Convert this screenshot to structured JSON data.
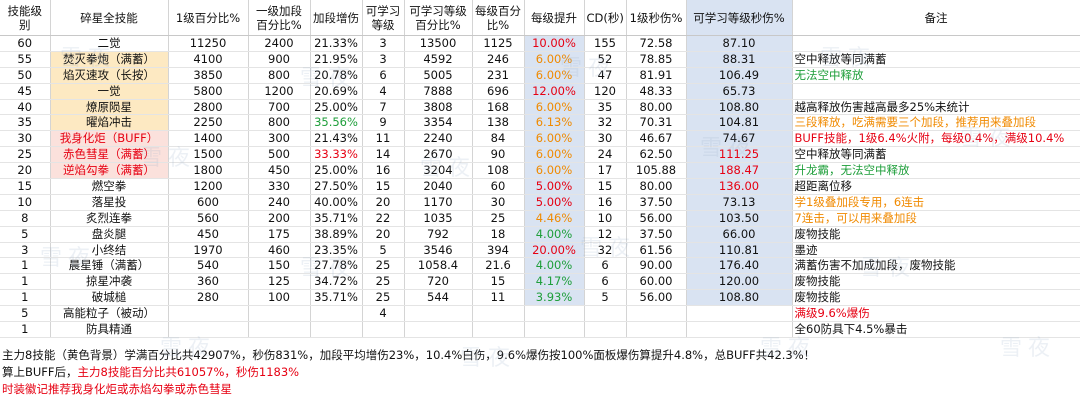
{
  "headers": [
    "技能级别",
    "碎星全技能",
    "1级百分比%",
    "一级加段百分比%",
    "加段增伤",
    "可学习等级",
    "可学习等级百分比%",
    "每级百分比%",
    "每级提升",
    "CD(秒)",
    "1级秒伤%",
    "可学习等级秒伤%",
    "备注"
  ],
  "rows": [
    {
      "level": "60",
      "name": "二觉",
      "pct1": "11250",
      "add1": "2400",
      "addInc": "21.33%",
      "learnLv": "3",
      "learnPct": "13500",
      "perLv": "1125",
      "perUp": "10.00%",
      "cd": "155",
      "dps1": "72.58",
      "dpsL": "87.10",
      "note": ""
    },
    {
      "level": "55",
      "name": "焚灭拳炮（满蓄）",
      "pct1": "4100",
      "add1": "900",
      "addInc": "21.95%",
      "learnLv": "3",
      "learnPct": "4592",
      "perLv": "246",
      "perUp": "6.00%",
      "cd": "52",
      "dps1": "78.85",
      "dpsL": "88.31",
      "note": "空中释放等同满蓄"
    },
    {
      "level": "50",
      "name": "焰灭速攻（长按）",
      "pct1": "3850",
      "add1": "800",
      "addInc": "20.78%",
      "learnLv": "6",
      "learnPct": "5005",
      "perLv": "231",
      "perUp": "6.00%",
      "cd": "47",
      "dps1": "81.91",
      "dpsL": "106.49",
      "note": "无法空中释放"
    },
    {
      "level": "45",
      "name": "一觉",
      "pct1": "5800",
      "add1": "1200",
      "addInc": "20.69%",
      "learnLv": "4",
      "learnPct": "7888",
      "perLv": "696",
      "perUp": "12.00%",
      "cd": "120",
      "dps1": "48.33",
      "dpsL": "65.73",
      "note": ""
    },
    {
      "level": "40",
      "name": "燎原陨星",
      "pct1": "2800",
      "add1": "700",
      "addInc": "25.00%",
      "learnLv": "7",
      "learnPct": "3808",
      "perLv": "168",
      "perUp": "6.00%",
      "cd": "35",
      "dps1": "80.00",
      "dpsL": "108.80",
      "note": "越高释放伤害越高最多25%未统计"
    },
    {
      "level": "35",
      "name": "曜焰冲击",
      "pct1": "2250",
      "add1": "800",
      "addInc": "35.56%",
      "learnLv": "9",
      "learnPct": "3354",
      "perLv": "138",
      "perUp": "6.13%",
      "cd": "32",
      "dps1": "70.31",
      "dpsL": "104.81",
      "note": "三段释放，吃满需要三个加段，推荐用来叠加段"
    },
    {
      "level": "30",
      "name": "我身化炬（BUFF）",
      "pct1": "1400",
      "add1": "300",
      "addInc": "21.43%",
      "learnLv": "11",
      "learnPct": "2240",
      "perLv": "84",
      "perUp": "6.00%",
      "cd": "30",
      "dps1": "46.67",
      "dpsL": "74.67",
      "note": "BUFF技能，1级6.4%火附，每级0.4%，满级10.4%"
    },
    {
      "level": "25",
      "name": "赤色彗星（满蓄）",
      "pct1": "1500",
      "add1": "500",
      "addInc": "33.33%",
      "learnLv": "14",
      "learnPct": "2670",
      "perLv": "90",
      "perUp": "6.00%",
      "cd": "24",
      "dps1": "62.50",
      "dpsL": "111.25",
      "note": "空中释放等同满蓄"
    },
    {
      "level": "20",
      "name": "逆焰勾拳（满蓄）",
      "pct1": "1800",
      "add1": "450",
      "addInc": "25.00%",
      "learnLv": "16",
      "learnPct": "3204",
      "perLv": "108",
      "perUp": "6.00%",
      "cd": "17",
      "dps1": "105.88",
      "dpsL": "188.47",
      "note": "升龙霸，无法空中释放"
    },
    {
      "level": "15",
      "name": "燃空拳",
      "pct1": "1200",
      "add1": "330",
      "addInc": "27.50%",
      "learnLv": "15",
      "learnPct": "2040",
      "perLv": "60",
      "perUp": "5.00%",
      "cd": "15",
      "dps1": "80.00",
      "dpsL": "136.00",
      "note": "超距离位移"
    },
    {
      "level": "10",
      "name": "落星投",
      "pct1": "600",
      "add1": "240",
      "addInc": "40.00%",
      "learnLv": "20",
      "learnPct": "1170",
      "perLv": "30",
      "perUp": "5.00%",
      "cd": "16",
      "dps1": "37.50",
      "dpsL": "73.13",
      "note": "学1级叠加段专用，6连击"
    },
    {
      "level": "8",
      "name": "炙烈连拳",
      "pct1": "560",
      "add1": "200",
      "addInc": "35.71%",
      "learnLv": "22",
      "learnPct": "1035",
      "perLv": "25",
      "perUp": "4.46%",
      "cd": "10",
      "dps1": "56.00",
      "dpsL": "103.50",
      "note": "7连击，可以用来叠加段"
    },
    {
      "level": "5",
      "name": "盘炎腿",
      "pct1": "450",
      "add1": "175",
      "addInc": "38.89%",
      "learnLv": "20",
      "learnPct": "792",
      "perLv": "18",
      "perUp": "4.00%",
      "cd": "12",
      "dps1": "37.50",
      "dpsL": "66.00",
      "note": "废物技能"
    },
    {
      "level": "3",
      "name": "小终结",
      "pct1": "1970",
      "add1": "460",
      "addInc": "23.35%",
      "learnLv": "5",
      "learnPct": "3546",
      "perLv": "394",
      "perUp": "20.00%",
      "cd": "32",
      "dps1": "61.56",
      "dpsL": "110.81",
      "note": "墨迹"
    },
    {
      "level": "1",
      "name": "晨星锤（满蓄）",
      "pct1": "540",
      "add1": "150",
      "addInc": "27.78%",
      "learnLv": "25",
      "learnPct": "1058.4",
      "perLv": "21.6",
      "perUp": "4.00%",
      "cd": "6",
      "dps1": "90.00",
      "dpsL": "176.40",
      "note": "满蓄伤害不加成加段，废物技能"
    },
    {
      "level": "1",
      "name": "掠星冲袭",
      "pct1": "360",
      "add1": "125",
      "addInc": "34.72%",
      "learnLv": "25",
      "learnPct": "720",
      "perLv": "15",
      "perUp": "4.17%",
      "cd": "6",
      "dps1": "60.00",
      "dpsL": "120.00",
      "note": "废物技能"
    },
    {
      "level": "1",
      "name": "破城槌",
      "pct1": "280",
      "add1": "100",
      "addInc": "35.71%",
      "learnLv": "25",
      "learnPct": "544",
      "perLv": "11",
      "perUp": "3.93%",
      "cd": "5",
      "dps1": "56.00",
      "dpsL": "108.80",
      "note": "废物技能"
    },
    {
      "level": "5",
      "name": "高能粒子（被动）",
      "pct1": "",
      "add1": "",
      "addInc": "",
      "learnLv": "4",
      "learnPct": "",
      "perLv": "",
      "perUp": "",
      "cd": "",
      "dps1": "",
      "dpsL": "",
      "note": "满级9.6%爆伤"
    },
    {
      "level": "1",
      "name": "防具精通",
      "pct1": "",
      "add1": "",
      "addInc": "",
      "learnLv": "",
      "learnPct": "",
      "perLv": "",
      "perUp": "",
      "cd": "",
      "dps1": "",
      "dpsL": "",
      "note": "全60防具下4.5%暴击"
    }
  ],
  "footer": {
    "line1": "主力8技能（黄色背景）学满百分比共42907%，秒伤831%，加段平均增伤23%，10.4%白伤，9.6%爆伤按100%面板爆伤算提升4.8%，总BUFF共42.3%！",
    "line2_prefix": "算上BUFF后，",
    "line2_red": "主力8技能百分比共61057%，秒伤1183%",
    "line3": "时装徽记推荐我身化炬或赤焰勾拳或赤色彗星"
  },
  "watermark": "雪夜",
  "colors": {
    "yellow_bg": "#fde9c2",
    "pink_bg": "#fbe1dc",
    "blue_bg": "#d9e3f2",
    "red": "#e60012",
    "orange": "#f08a00",
    "green": "#1e9e3a"
  }
}
